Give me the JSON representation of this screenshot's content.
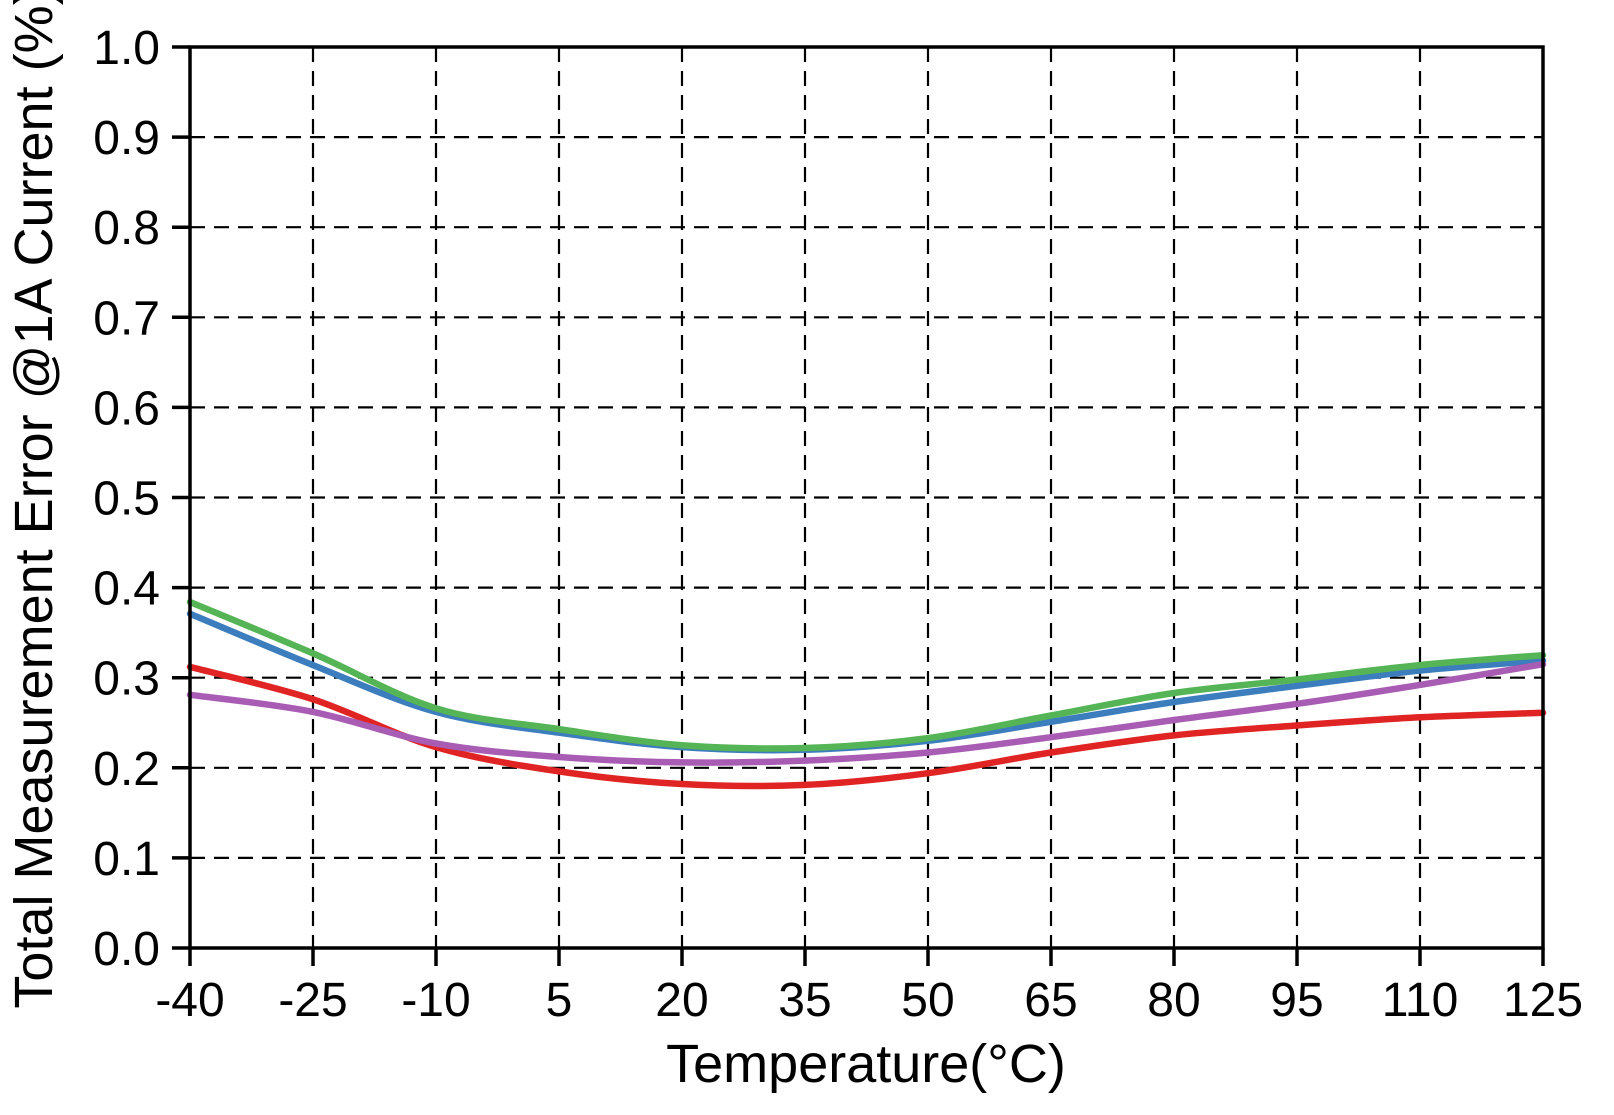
{
  "chart_data": {
    "type": "line",
    "title": "",
    "xlabel": "Temperature(°C)",
    "ylabel": "Total Measurement Error @1A Current (%)",
    "xlim": [
      -40,
      125
    ],
    "ylim": [
      0.0,
      1.0
    ],
    "grid": "dashed-both-axes",
    "legend": "none",
    "frame": "full-box",
    "axis_color": "#000000",
    "grid_color": "#000000",
    "x": [
      -40,
      -25,
      -10,
      5,
      20,
      35,
      50,
      65,
      80,
      95,
      110,
      125
    ],
    "x_tick_labels": [
      "-40",
      "-25",
      "-10",
      "5",
      "20",
      "35",
      "50",
      "65",
      "80",
      "95",
      "110",
      "125"
    ],
    "y_ticks": [
      0.0,
      0.1,
      0.2,
      0.3,
      0.4,
      0.5,
      0.6,
      0.7,
      0.8,
      0.9,
      1.0
    ],
    "y_tick_labels": [
      "0.0",
      "0.1",
      "0.2",
      "0.3",
      "0.4",
      "0.5",
      "0.6",
      "0.7",
      "0.8",
      "0.9",
      "1.0"
    ],
    "series": [
      {
        "name": "blue-curve",
        "color": "#3c7dbd",
        "values": [
          0.371,
          0.314,
          0.262,
          0.239,
          0.223,
          0.22,
          0.23,
          0.251,
          0.273,
          0.291,
          0.308,
          0.319
        ]
      },
      {
        "name": "red-curve",
        "color": "#e02424",
        "values": [
          0.312,
          0.276,
          0.223,
          0.196,
          0.182,
          0.181,
          0.194,
          0.217,
          0.236,
          0.247,
          0.256,
          0.261
        ]
      },
      {
        "name": "purple-curve",
        "color": "#a85cb4",
        "values": [
          0.281,
          0.262,
          0.227,
          0.212,
          0.206,
          0.208,
          0.217,
          0.234,
          0.253,
          0.271,
          0.292,
          0.315
        ]
      },
      {
        "name": "green-curve",
        "color": "#55b455",
        "values": [
          0.384,
          0.327,
          0.266,
          0.243,
          0.225,
          0.222,
          0.233,
          0.258,
          0.283,
          0.298,
          0.314,
          0.325
        ]
      }
    ]
  }
}
